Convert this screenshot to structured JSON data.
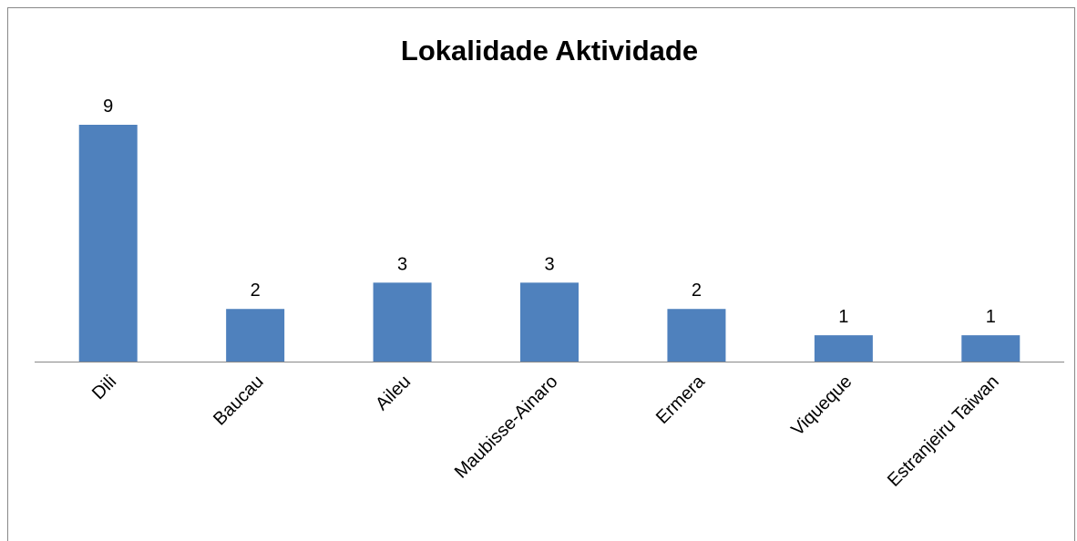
{
  "chart_data": {
    "type": "bar",
    "title": "Lokalidade Aktividade",
    "categories": [
      "Dili",
      "Baucau",
      "Aileu",
      "Maubisse-Ainaro",
      "Ermera",
      "Viqueque",
      "Estranjeiru Taiwan"
    ],
    "values": [
      9,
      2,
      3,
      3,
      2,
      1,
      1
    ],
    "color": "#4f81bd"
  }
}
